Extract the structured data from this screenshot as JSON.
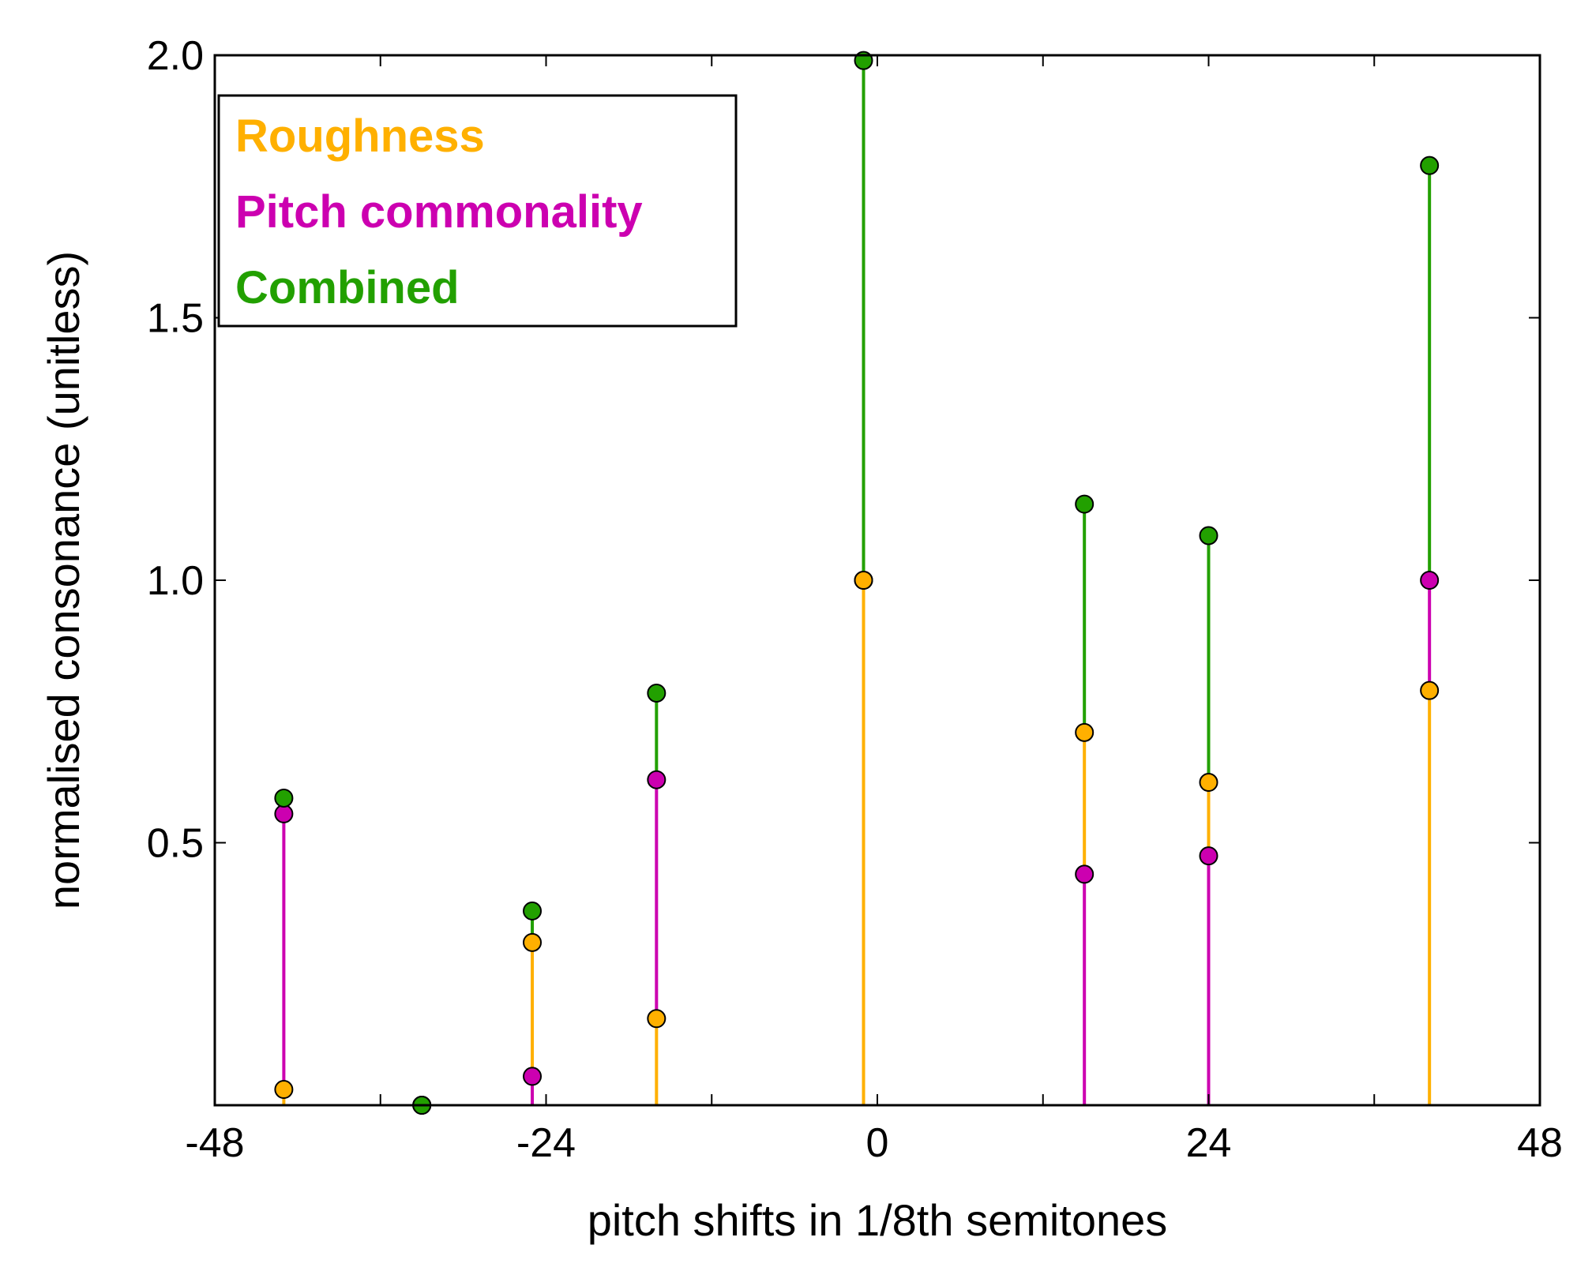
{
  "colors": {
    "roughness": "#FFB000",
    "pitch_commonality": "#CC00B0",
    "combined": "#22A000",
    "axis": "#000000"
  },
  "chart_data": {
    "type": "stem",
    "xlabel": "pitch shifts in 1/8th semitones",
    "ylabel": "normalised consonance (unitless)",
    "xlim": [
      -48,
      48
    ],
    "ylim": [
      0,
      2.0
    ],
    "xticks": [
      -48,
      -24,
      0,
      24,
      48
    ],
    "xtick_labels": [
      "-48",
      "-24",
      "0",
      "24",
      "48"
    ],
    "yticks": [
      0.5,
      1.0,
      1.5,
      2.0
    ],
    "ytick_labels": [
      "0.5",
      "1.0",
      "1.5",
      "2.0"
    ],
    "legend": {
      "placement": "top-left",
      "entries": [
        "Roughness",
        "Pitch commonality",
        "Combined"
      ]
    },
    "x": [
      -43,
      -33,
      -25,
      -16,
      -1,
      15,
      24,
      40
    ],
    "series": [
      {
        "name": "Roughness",
        "color_key": "roughness",
        "values": [
          0.03,
          0.0,
          0.31,
          0.165,
          1.0,
          0.71,
          0.615,
          0.79
        ]
      },
      {
        "name": "Pitch commonality",
        "color_key": "pitch_commonality",
        "values": [
          0.555,
          0.0,
          0.055,
          0.62,
          1.0,
          0.44,
          0.475,
          1.0
        ]
      },
      {
        "name": "Combined",
        "color_key": "combined",
        "values": [
          0.585,
          0.0,
          0.37,
          0.785,
          1.99,
          1.145,
          1.085,
          1.79
        ]
      }
    ]
  }
}
